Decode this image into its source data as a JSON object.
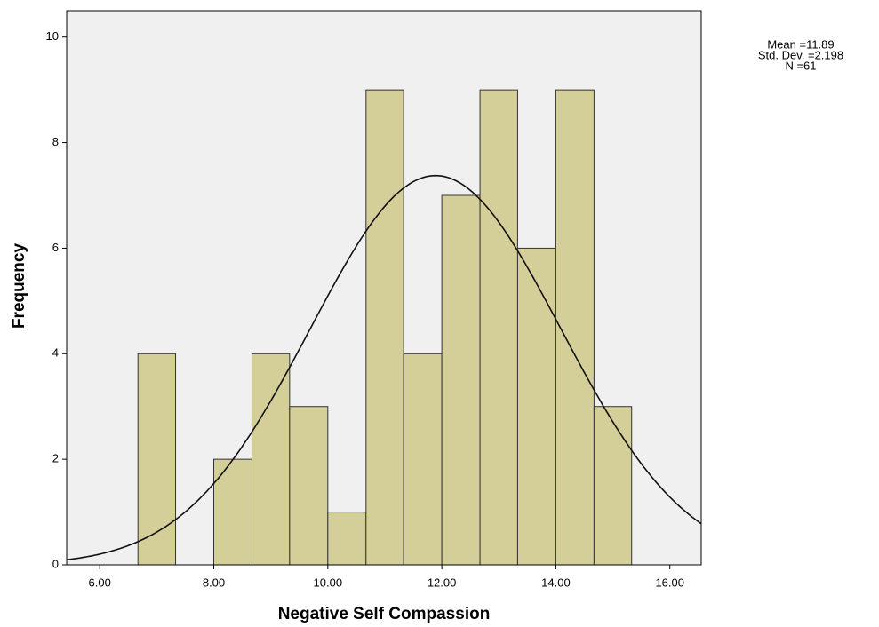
{
  "chart_data": {
    "type": "histogram",
    "x_label": "Negative Self Compassion",
    "y_label": "Frequency",
    "bins": [
      6.67,
      7.33,
      8.0,
      8.67,
      9.33,
      10.0,
      10.67,
      11.33,
      12.0,
      12.67,
      13.33,
      14.0,
      14.67,
      15.33
    ],
    "values": [
      4,
      0,
      2,
      4,
      3,
      1,
      9,
      4,
      7,
      9,
      6,
      9,
      3
    ],
    "color": "#d4cf99",
    "edge_color": "#333333",
    "plot_background": "#f0f0f0",
    "xlim": [
      5.42,
      16.55
    ],
    "ylim": [
      0,
      10.5
    ],
    "xticks": [
      {
        "value": 6,
        "label": "6.00"
      },
      {
        "value": 8,
        "label": "8.00"
      },
      {
        "value": 10,
        "label": "10.00"
      },
      {
        "value": 12,
        "label": "12.00"
      },
      {
        "value": 14,
        "label": "14.00"
      },
      {
        "value": 16,
        "label": "16.00"
      }
    ],
    "yticks": [
      0,
      2,
      4,
      6,
      8,
      10
    ],
    "normal_curve": {
      "mean": 11.89,
      "std": 2.198,
      "n": 61,
      "labels": [
        "Mean =11.89",
        "Std. Dev. =2.198",
        "N =61"
      ]
    }
  }
}
